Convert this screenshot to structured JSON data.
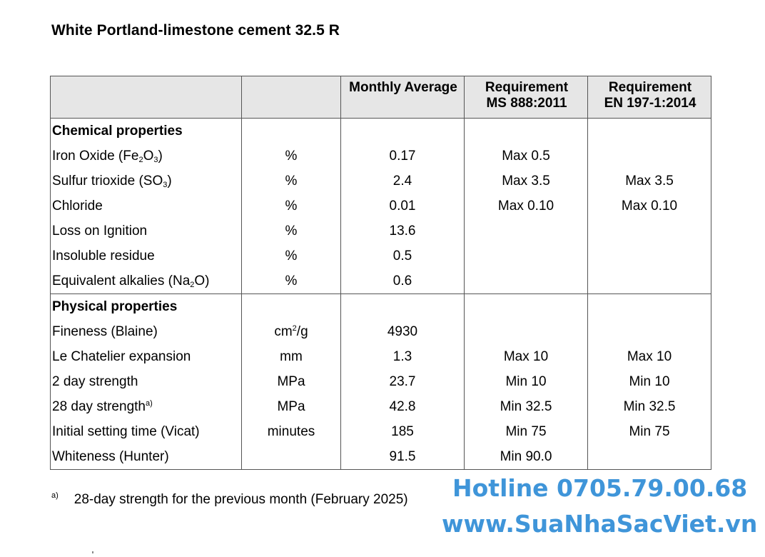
{
  "title": "White Portland-limestone cement 32.5 R",
  "table": {
    "headers": [
      "",
      "",
      "Monthly Average",
      "Requirement\nMS 888:2011",
      "Requirement\nEN 197-1:2014"
    ],
    "sections": [
      {
        "label": "Chemical properties",
        "rows": [
          {
            "name_pre": "Iron Oxide (Fe",
            "name_sub1": "2",
            "name_mid": "O",
            "name_sub2": "3",
            "name_post": ")",
            "unit": "%",
            "avg": "0.17",
            "ms": "Max 0.5",
            "en": ""
          },
          {
            "name_pre": "Sulfur trioxide (SO",
            "name_sub1": "3",
            "name_post": ")",
            "unit": "%",
            "avg": "2.4",
            "ms": "Max 3.5",
            "en": "Max 3.5"
          },
          {
            "name": "Chloride",
            "unit": "%",
            "avg": "0.01",
            "ms": "Max 0.10",
            "en": "Max 0.10"
          },
          {
            "name": "Loss on Ignition",
            "unit": "%",
            "avg": "13.6",
            "ms": "",
            "en": ""
          },
          {
            "name": "Insoluble residue",
            "unit": "%",
            "avg": "0.5",
            "ms": "",
            "en": ""
          },
          {
            "name_pre": "Equivalent alkalies (Na",
            "name_sub1": "2",
            "name_post": "O)",
            "unit": "%",
            "avg": "0.6",
            "ms": "",
            "en": ""
          }
        ]
      },
      {
        "label": "Physical properties",
        "rows": [
          {
            "name": "Fineness (Blaine)",
            "unit_pre": "cm",
            "unit_sup": "2",
            "unit_post": "/g",
            "avg": "4930",
            "ms": "",
            "en": ""
          },
          {
            "name": "Le Chatelier expansion",
            "unit": "mm",
            "avg": "1.3",
            "ms": "Max 10",
            "en": "Max 10"
          },
          {
            "name": "2 day strength",
            "unit": "MPa",
            "avg": "23.7",
            "ms": "Min 10",
            "en": "Min 10"
          },
          {
            "name": "28 day strength",
            "name_sup": "a)",
            "unit": "MPa",
            "avg": "42.8",
            "ms": "Min 32.5",
            "en": "Min 32.5"
          },
          {
            "name": "Initial setting time (Vicat)",
            "unit": "minutes",
            "avg": "185",
            "ms": "Min 75",
            "en": "Min 75"
          },
          {
            "name": "Whiteness (Hunter)",
            "unit": "",
            "avg": "91.5",
            "ms": "Min 90.0",
            "en": ""
          }
        ]
      }
    ]
  },
  "footnote": {
    "mark": "a)",
    "text": "28-day strength for the previous month (February 2025)"
  },
  "watermark": {
    "line1": "Hotline 0705.79.00.68",
    "line2": "www.SuaNhaSacViet.vn",
    "color": "#3f95d9"
  }
}
